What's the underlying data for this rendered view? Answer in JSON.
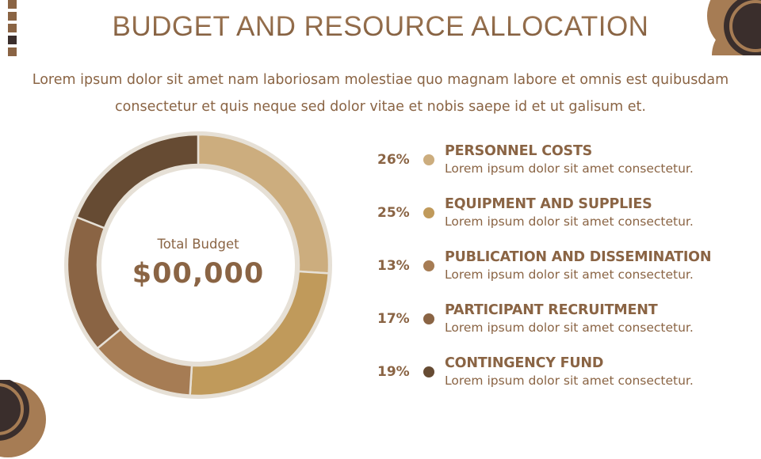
{
  "title": "BUDGET AND RESOURCE ALLOCATION",
  "subtitle": "Lorem ipsum dolor sit amet nam laboriosam molestiae quo magnam labore et omnis est quibusdam consectetur et quis neque sed dolor vitae et nobis saepe id et ut galisum et.",
  "center": {
    "label": "Total Budget",
    "value": "$00,000"
  },
  "colors": {
    "text": "#8a6444",
    "ring": "#e6e0d6",
    "dark": "#3a2e2c",
    "accent": "#a67c54"
  },
  "legend": [
    {
      "pct": "26%",
      "name": "PERSONNEL COSTS",
      "desc": "Lorem ipsum dolor sit amet consectetur.",
      "color": "#ccad7e"
    },
    {
      "pct": "25%",
      "name": "EQUIPMENT AND SUPPLIES",
      "desc": "Lorem ipsum dolor sit amet consectetur.",
      "color": "#c09a5b"
    },
    {
      "pct": "13%",
      "name": "PUBLICATION AND DISSEMINATION",
      "desc": "Lorem ipsum dolor sit amet consectetur.",
      "color": "#a67c54"
    },
    {
      "pct": "17%",
      "name": "PARTICIPANT RECRUITMENT",
      "desc": "Lorem ipsum dolor sit amet consectetur.",
      "color": "#8a6444"
    },
    {
      "pct": "19%",
      "name": "CONTINGENCY FUND",
      "desc": "Lorem ipsum dolor sit amet consectetur.",
      "color": "#664b33"
    }
  ],
  "chart_data": {
    "type": "pie",
    "subtype": "donut",
    "title": "Total Budget $00,000",
    "categories": [
      "Personnel Costs",
      "Equipment and Supplies",
      "Publication and Dissemination",
      "Participant Recruitment",
      "Contingency Fund"
    ],
    "values": [
      26,
      25,
      13,
      17,
      19
    ],
    "colors": [
      "#ccad7e",
      "#c09a5b",
      "#a67c54",
      "#8a6444",
      "#664b33"
    ],
    "start_angle": "top",
    "direction": "clockwise",
    "legend_position": "right"
  }
}
